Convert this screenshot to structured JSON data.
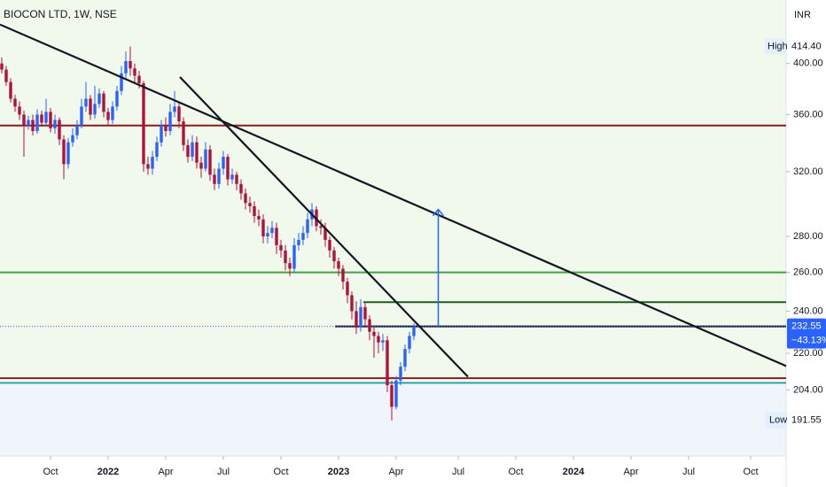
{
  "chart_data": {
    "type": "candlestick",
    "title": "BIOCON LTD, 1W, NSE",
    "currency": "INR",
    "log": true,
    "up_color": "#2962ff",
    "down_color": "#b2123a",
    "xlim": [
      -0.4,
      177
    ],
    "xticks": [
      {
        "value": 11,
        "label": "Oct"
      },
      {
        "value": 24,
        "label": "2022"
      },
      {
        "value": 37,
        "label": "Apr"
      },
      {
        "value": 50,
        "label": "Jul"
      },
      {
        "value": 63,
        "label": "Oct"
      },
      {
        "value": 76,
        "label": "2023"
      },
      {
        "value": 89,
        "label": "Apr"
      },
      {
        "value": 103,
        "label": "Jul"
      },
      {
        "value": 116,
        "label": "Oct"
      },
      {
        "value": 129,
        "label": "2024"
      },
      {
        "value": 142,
        "label": "Apr"
      },
      {
        "value": 155,
        "label": "Jul"
      },
      {
        "value": 169,
        "label": "Oct"
      }
    ],
    "ylim": [
      178,
      456
    ],
    "yticks": [
      {
        "value": 400,
        "label": "400.00"
      },
      {
        "value": 360,
        "label": "360.00"
      },
      {
        "value": 320,
        "label": "320.00"
      },
      {
        "value": 280,
        "label": "280.00"
      },
      {
        "value": 260,
        "label": "260.00"
      },
      {
        "value": 240,
        "label": "240.00"
      },
      {
        "value": 220,
        "label": "220.00"
      },
      {
        "value": 204,
        "label": "204.00"
      }
    ],
    "open": [
      400,
      395,
      385,
      372,
      366,
      360,
      352,
      356,
      348,
      360,
      354,
      362,
      350,
      356,
      342,
      325,
      340,
      345,
      352,
      366,
      372,
      360,
      368,
      376,
      362,
      356,
      366,
      378,
      392,
      402,
      396,
      390,
      384,
      325,
      322,
      330,
      340,
      352,
      348,
      362,
      366,
      355,
      338,
      330,
      340,
      326,
      322,
      335,
      318,
      312,
      322,
      330,
      315,
      318,
      312,
      306,
      300,
      298,
      292,
      290,
      280,
      282,
      285,
      275,
      272,
      265,
      262,
      275,
      278,
      282,
      290,
      296,
      286,
      285,
      278,
      272,
      266,
      262,
      255,
      248,
      240,
      232,
      242,
      236,
      230,
      228,
      225,
      226,
      206,
      197,
      208,
      214,
      222,
      228
    ],
    "high": [
      405,
      398,
      388,
      375,
      370,
      363,
      359,
      360,
      364,
      363,
      372,
      365,
      360,
      358,
      345,
      343,
      350,
      356,
      372,
      385,
      375,
      382,
      380,
      378,
      365,
      370,
      382,
      398,
      410,
      414.4,
      400,
      394,
      386,
      330,
      334,
      344,
      356,
      358,
      368,
      378,
      370,
      358,
      342,
      345,
      344,
      330,
      340,
      338,
      322,
      326,
      334,
      332,
      322,
      320,
      315,
      309,
      304,
      301,
      296,
      293,
      286,
      289,
      288,
      278,
      275,
      268,
      279,
      282,
      286,
      294,
      300,
      298,
      290,
      288,
      280,
      274,
      268,
      264,
      257,
      250,
      245,
      246,
      244,
      238,
      232,
      230,
      229,
      228,
      208,
      210,
      216,
      224,
      230,
      234
    ],
    "low": [
      392,
      382,
      369,
      362,
      356,
      330,
      349,
      345,
      346,
      351,
      352,
      347,
      346,
      338,
      315,
      322,
      337,
      342,
      350,
      362,
      356,
      357,
      365,
      358,
      352,
      353,
      363,
      375,
      388,
      390,
      385,
      380,
      320,
      318,
      318,
      327,
      337,
      344,
      345,
      358,
      350,
      334,
      326,
      327,
      322,
      316,
      320,
      314,
      308,
      309,
      318,
      311,
      312,
      308,
      302,
      296,
      294,
      288,
      286,
      276,
      276,
      279,
      270,
      268,
      261,
      258,
      260,
      272,
      275,
      279,
      286,
      283,
      281,
      274,
      268,
      262,
      258,
      251,
      244,
      236,
      229,
      230,
      232,
      226,
      218,
      220,
      221,
      203,
      191.55,
      196,
      206,
      212,
      220,
      226
    ],
    "close": [
      395,
      385,
      372,
      366,
      360,
      352,
      356,
      348,
      360,
      354,
      362,
      350,
      356,
      342,
      325,
      340,
      345,
      352,
      366,
      372,
      360,
      368,
      376,
      362,
      356,
      366,
      378,
      392,
      402,
      396,
      390,
      384,
      325,
      322,
      330,
      340,
      352,
      348,
      362,
      366,
      355,
      338,
      330,
      340,
      326,
      322,
      335,
      318,
      312,
      322,
      330,
      315,
      318,
      312,
      306,
      300,
      298,
      292,
      290,
      280,
      282,
      285,
      275,
      272,
      265,
      262,
      275,
      278,
      282,
      290,
      296,
      286,
      285,
      278,
      272,
      266,
      262,
      255,
      248,
      240,
      232,
      242,
      236,
      230,
      228,
      225,
      226,
      206,
      197,
      208,
      214,
      222,
      228,
      232.55
    ],
    "levels": [
      {
        "value": 352,
        "color": "#8b1a1a",
        "from": -0.4
      },
      {
        "value": 260,
        "color": "#43a047",
        "from": -0.4
      },
      {
        "value": 244.5,
        "color": "#1b5e20",
        "from": 81.6
      },
      {
        "value": 232.55,
        "color": "#131722",
        "from": 75.2
      },
      {
        "value": 209,
        "color": "#8b1a1a",
        "from": -0.4
      },
      {
        "value": 207,
        "color": "#26a69a",
        "from": -0.4
      }
    ],
    "trendlines": [
      {
        "x": [
          -0.4,
          177
        ],
        "price": [
          433.5,
          214.3
        ]
      },
      {
        "x": [
          40.2,
          105.2
        ],
        "price": [
          389,
          209.6
        ]
      }
    ],
    "arrow": {
      "x": 98.5,
      "from": 232.55,
      "to": 296,
      "color": "#2962ff"
    },
    "high_label": {
      "text": "High",
      "value": {
        "value": 414.4,
        "label": "414.40"
      }
    },
    "low_label": {
      "text": "Low",
      "value": {
        "value": 191.55,
        "label": "191.55"
      }
    },
    "last": {
      "value": 232.55,
      "change": {
        "value": -43.13,
        "label": "−43.13%"
      }
    }
  }
}
